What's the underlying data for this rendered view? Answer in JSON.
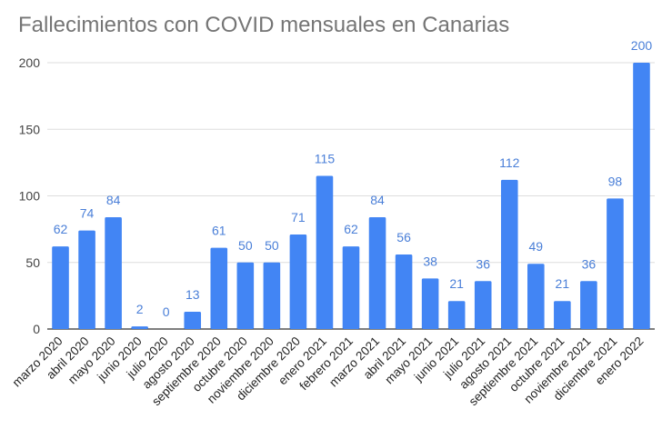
{
  "chart_data": {
    "type": "bar",
    "title": "Fallecimientos con COVID mensuales en Canarias",
    "xlabel": "",
    "ylabel": "",
    "ylim": [
      0,
      200
    ],
    "yticks": [
      0,
      50,
      100,
      150,
      200
    ],
    "grid": true,
    "legend": "none",
    "bar_color": "#4285f4",
    "label_color": "#4a7fd8",
    "categories": [
      "marzo 2020",
      "abril 2020",
      "mayo 2020",
      "junio 2020",
      "julio 2020",
      "agosto 2020",
      "septiembre 2020",
      "octubre 2020",
      "noviembre 2020",
      "diciembre 2020",
      "enero 2021",
      "febrero 2021",
      "marzo 2021",
      "abril 2021",
      "mayo 2021",
      "junio 2021",
      "julio 2021",
      "agosto 2021",
      "septiembre 2021",
      "octubre 2021",
      "noviembre 2021",
      "diciembre 2021",
      "enero 2022"
    ],
    "values": [
      62,
      74,
      84,
      2,
      0,
      13,
      61,
      50,
      50,
      71,
      115,
      62,
      84,
      56,
      38,
      21,
      36,
      112,
      49,
      21,
      36,
      98,
      200
    ]
  }
}
